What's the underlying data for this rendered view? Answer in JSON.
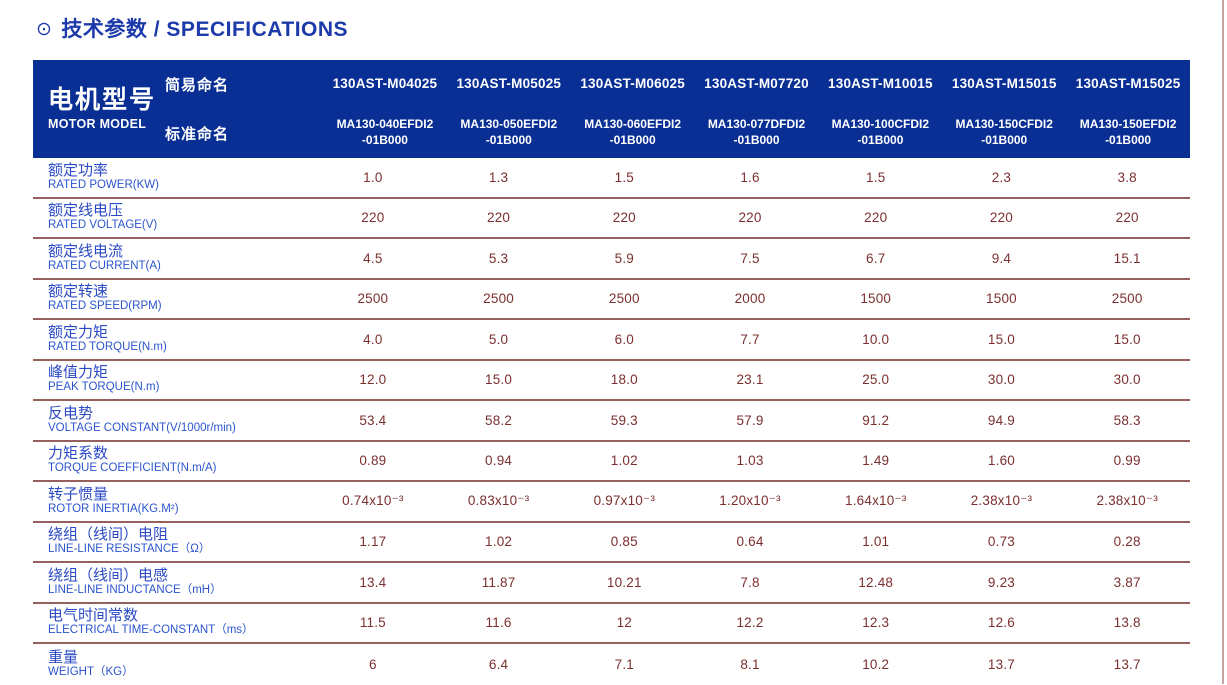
{
  "title": {
    "icon": "⊙",
    "text": "技术参数 / SPECIFICATIONS"
  },
  "colors": {
    "header_bg": "#0a2f94",
    "title_blue": "#1c3aa9",
    "label_blue": "#2b4ac5",
    "value_maroon": "#7c2f2f",
    "separator": "#96605f",
    "edge_line": "#c9a2a2"
  },
  "table": {
    "header": {
      "row_title_cn": "电机型号",
      "row_title_en": "MOTOR MODEL",
      "simple_label": "简易命名",
      "standard_label": "标准命名",
      "models": [
        {
          "simple": "130AST-M04025",
          "standard_line1": "MA130-040EFDI2",
          "standard_line2": "-01B000"
        },
        {
          "simple": "130AST-M05025",
          "standard_line1": "MA130-050EFDI2",
          "standard_line2": "-01B000"
        },
        {
          "simple": "130AST-M06025",
          "standard_line1": "MA130-060EFDI2",
          "standard_line2": "-01B000"
        },
        {
          "simple": "130AST-M07720",
          "standard_line1": "MA130-077DFDI2",
          "standard_line2": "-01B000"
        },
        {
          "simple": "130AST-M10015",
          "standard_line1": "MA130-100CFDI2",
          "standard_line2": "-01B000"
        },
        {
          "simple": "130AST-M15015",
          "standard_line1": "MA130-150CFDI2",
          "standard_line2": "-01B000"
        },
        {
          "simple": "130AST-M15025",
          "standard_line1": "MA130-150EFDI2",
          "standard_line2": "-01B000"
        }
      ]
    },
    "rows": [
      {
        "label_cn": "额定功率",
        "label_en": "RATED POWER(KW)",
        "values": [
          "1.0",
          "1.3",
          "1.5",
          "1.6",
          "1.5",
          "2.3",
          "3.8"
        ]
      },
      {
        "label_cn": "额定线电压",
        "label_en": "RATED VOLTAGE(V)",
        "values": [
          "220",
          "220",
          "220",
          "220",
          "220",
          "220",
          "220"
        ]
      },
      {
        "label_cn": "额定线电流",
        "label_en": "RATED CURRENT(A)",
        "values": [
          "4.5",
          "5.3",
          "5.9",
          "7.5",
          "6.7",
          "9.4",
          "15.1"
        ]
      },
      {
        "label_cn": "额定转速",
        "label_en": "RATED SPEED(RPM)",
        "values": [
          "2500",
          "2500",
          "2500",
          "2000",
          "1500",
          "1500",
          "2500"
        ]
      },
      {
        "label_cn": "额定力矩",
        "label_en": "RATED TORQUE(N.m)",
        "values": [
          "4.0",
          "5.0",
          "6.0",
          "7.7",
          "10.0",
          "15.0",
          "15.0"
        ]
      },
      {
        "label_cn": "峰值力矩",
        "label_en": "PEAK TORQUE(N.m)",
        "values": [
          "12.0",
          "15.0",
          "18.0",
          "23.1",
          "25.0",
          "30.0",
          "30.0"
        ]
      },
      {
        "label_cn": "反电势",
        "label_en": "VOLTAGE CONSTANT(V/1000r/min)",
        "values": [
          "53.4",
          "58.2",
          "59.3",
          "57.9",
          "91.2",
          "94.9",
          "58.3"
        ]
      },
      {
        "label_cn": "力矩系数",
        "label_en": "TORQUE COEFFICIENT(N.m/A)",
        "values": [
          "0.89",
          "0.94",
          "1.02",
          "1.03",
          "1.49",
          "1.60",
          "0.99"
        ]
      },
      {
        "label_cn": "转子惯量",
        "label_en": "ROTOR INERTIA(KG.M²)",
        "values": [
          "0.74x10⁻³",
          "0.83x10⁻³",
          "0.97x10⁻³",
          "1.20x10⁻³",
          "1.64x10⁻³",
          "2.38x10⁻³",
          "2.38x10⁻³"
        ]
      },
      {
        "label_cn": "绕组（线间）电阻",
        "label_en": "LINE-LINE RESISTANCE（Ω）",
        "values": [
          "1.17",
          "1.02",
          "0.85",
          "0.64",
          "1.01",
          "0.73",
          "0.28"
        ]
      },
      {
        "label_cn": "绕组（线间）电感",
        "label_en": "LINE-LINE INDUCTANCE（mH）",
        "values": [
          "13.4",
          "11.87",
          "10.21",
          "7.8",
          "12.48",
          "9.23",
          "3.87"
        ]
      },
      {
        "label_cn": "电气时间常数",
        "label_en": "ELECTRICAL TIME-CONSTANT（ms）",
        "values": [
          "11.5",
          "11.6",
          "12",
          "12.2",
          "12.3",
          "12.6",
          "13.8"
        ]
      },
      {
        "label_cn": "重量",
        "label_en": "WEIGHT（KG）",
        "values": [
          "6",
          "6.4",
          "7.1",
          "8.1",
          "10.2",
          "13.7",
          "13.7"
        ]
      }
    ]
  },
  "chart_data": {
    "type": "table",
    "title": "技术参数 / SPECIFICATIONS",
    "columns": [
      "130AST-M04025",
      "130AST-M05025",
      "130AST-M06025",
      "130AST-M07720",
      "130AST-M10015",
      "130AST-M15015",
      "130AST-M15025"
    ],
    "row_headers": [
      "RATED POWER(KW)",
      "RATED VOLTAGE(V)",
      "RATED CURRENT(A)",
      "RATED SPEED(RPM)",
      "RATED TORQUE(N.m)",
      "PEAK TORQUE(N.m)",
      "VOLTAGE CONSTANT(V/1000r/min)",
      "TORQUE COEFFICIENT(N.m/A)",
      "ROTOR INERTIA(KG.M²)",
      "LINE-LINE RESISTANCE(Ω)",
      "LINE-LINE INDUCTANCE(mH)",
      "ELECTRICAL TIME-CONSTANT(ms)",
      "WEIGHT(KG)"
    ]
  }
}
